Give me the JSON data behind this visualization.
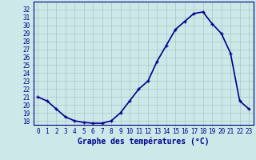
{
  "hours": [
    0,
    1,
    2,
    3,
    4,
    5,
    6,
    7,
    8,
    9,
    10,
    11,
    12,
    13,
    14,
    15,
    16,
    17,
    18,
    19,
    20,
    21,
    22,
    23
  ],
  "temps": [
    21.0,
    20.5,
    19.5,
    18.5,
    18.0,
    17.8,
    17.7,
    17.7,
    18.0,
    19.0,
    20.5,
    22.0,
    23.0,
    25.5,
    27.5,
    29.5,
    30.5,
    31.5,
    31.7,
    30.2,
    29.0,
    26.5,
    20.5,
    19.5
  ],
  "xlabel": "Graphe des températures (°C)",
  "ylim": [
    17.5,
    33.0
  ],
  "xlim": [
    -0.5,
    23.5
  ],
  "yticks": [
    18,
    19,
    20,
    21,
    22,
    23,
    24,
    25,
    26,
    27,
    28,
    29,
    30,
    31,
    32
  ],
  "xticks": [
    0,
    1,
    2,
    3,
    4,
    5,
    6,
    7,
    8,
    9,
    10,
    11,
    12,
    13,
    14,
    15,
    16,
    17,
    18,
    19,
    20,
    21,
    22,
    23
  ],
  "line_color": "#00008b",
  "marker": "+",
  "bg_color": "#cce8e8",
  "grid_color": "#b0c4c4",
  "xlabel_color": "#00008b",
  "xlabel_fontsize": 7,
  "tick_fontsize": 5.5,
  "linewidth": 1.2,
  "markersize": 3.5
}
